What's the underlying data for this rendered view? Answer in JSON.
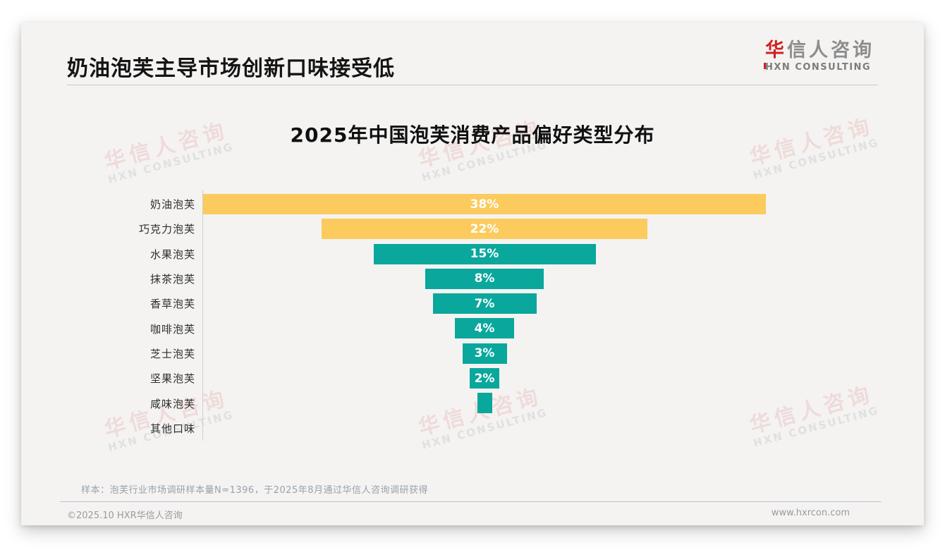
{
  "page": {
    "title": "奶油泡芙主导市场创新口味接受低",
    "logo": {
      "cn_first": "华",
      "cn_rest": "信人咨询",
      "en_first": "H",
      "en_rest": "XN CONSULTING"
    },
    "note": "样本：泡芙行业市场调研样本量N=1396，于2025年8月通过华信人咨询调研获得",
    "footer": {
      "copyright": "©2025.10 HXR华信人咨询",
      "website": "www.hxrcon.com"
    }
  },
  "watermark": {
    "line1": "华信人咨询",
    "line2": "HXN CONSULTING"
  },
  "colors": {
    "accent_yellow": "#FBCB5E",
    "accent_teal": "#0AA79C",
    "brand_red": "#CF2121",
    "card_background": "#F4F3F2",
    "value_label": "#FFFFFF"
  },
  "chart_data": {
    "type": "bar",
    "variant": "centered-funnel",
    "orientation": "horizontal",
    "title": "2025年中国泡芙消费产品偏好类型分布",
    "categories": [
      "奶油泡芙",
      "巧克力泡芙",
      "水果泡芙",
      "抹茶泡芙",
      "香草泡芙",
      "咖啡泡芙",
      "芝士泡芙",
      "坚果泡芙",
      "咸味泡芙",
      "其他口味"
    ],
    "values": [
      38,
      22,
      15,
      8,
      7,
      4,
      3,
      2,
      1,
      0
    ],
    "labels": [
      "38%",
      "22%",
      "15%",
      "8%",
      "7%",
      "4%",
      "3%",
      "2%",
      "",
      ""
    ],
    "colors": [
      "#FBCB5E",
      "#FBCB5E",
      "#0AA79C",
      "#0AA79C",
      "#0AA79C",
      "#0AA79C",
      "#0AA79C",
      "#0AA79C",
      "#0AA79C",
      "#0AA79C"
    ],
    "unit": "%",
    "xlim": [
      0,
      40
    ],
    "grid": false,
    "legend": false,
    "value_labels_inside_bars": true
  }
}
